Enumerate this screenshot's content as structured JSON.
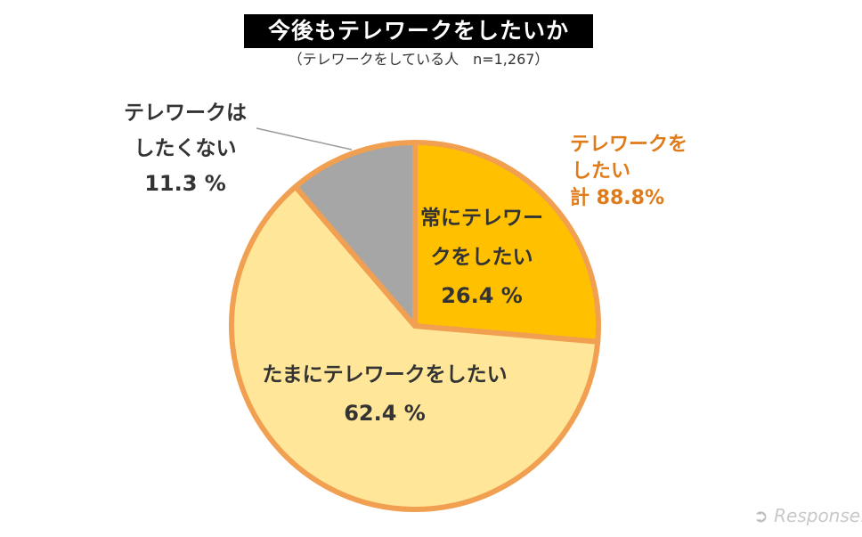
{
  "title": "今後もテレワークをしたいか",
  "subtitle": "（テレワークをしている人　n=1,267）",
  "group_label": {
    "line1": "テレワークを",
    "line2": "したい",
    "line3": "計 88.8%",
    "color": "#E07B1A"
  },
  "chart_data": {
    "type": "pie",
    "title": "今後もテレワークをしたいか",
    "subtitle": "（テレワークをしている人　n=1,267）",
    "start_angle_deg": 0,
    "direction": "clockwise",
    "slices": [
      {
        "name": "常にテレワークをしたい",
        "label_lines": [
          "常にテレワー",
          "クをしたい"
        ],
        "value": 26.4,
        "value_label": "26.4 %",
        "color": "#FFC000",
        "stroke": "#F0A050"
      },
      {
        "name": "たまにテレワークをしたい",
        "label_lines": [
          "たまにテレワークをしたい"
        ],
        "value": 62.4,
        "value_label": "62.4 %",
        "color": "#FFE699",
        "stroke": "#F0A050"
      },
      {
        "name": "テレワークはしたくない",
        "label_lines": [
          "テレワークは",
          "したくない"
        ],
        "value": 11.3,
        "value_label": "11.3 %",
        "color": "#A6A6A6",
        "stroke": "#F0A050"
      }
    ]
  },
  "watermark": {
    "text": "Response."
  }
}
